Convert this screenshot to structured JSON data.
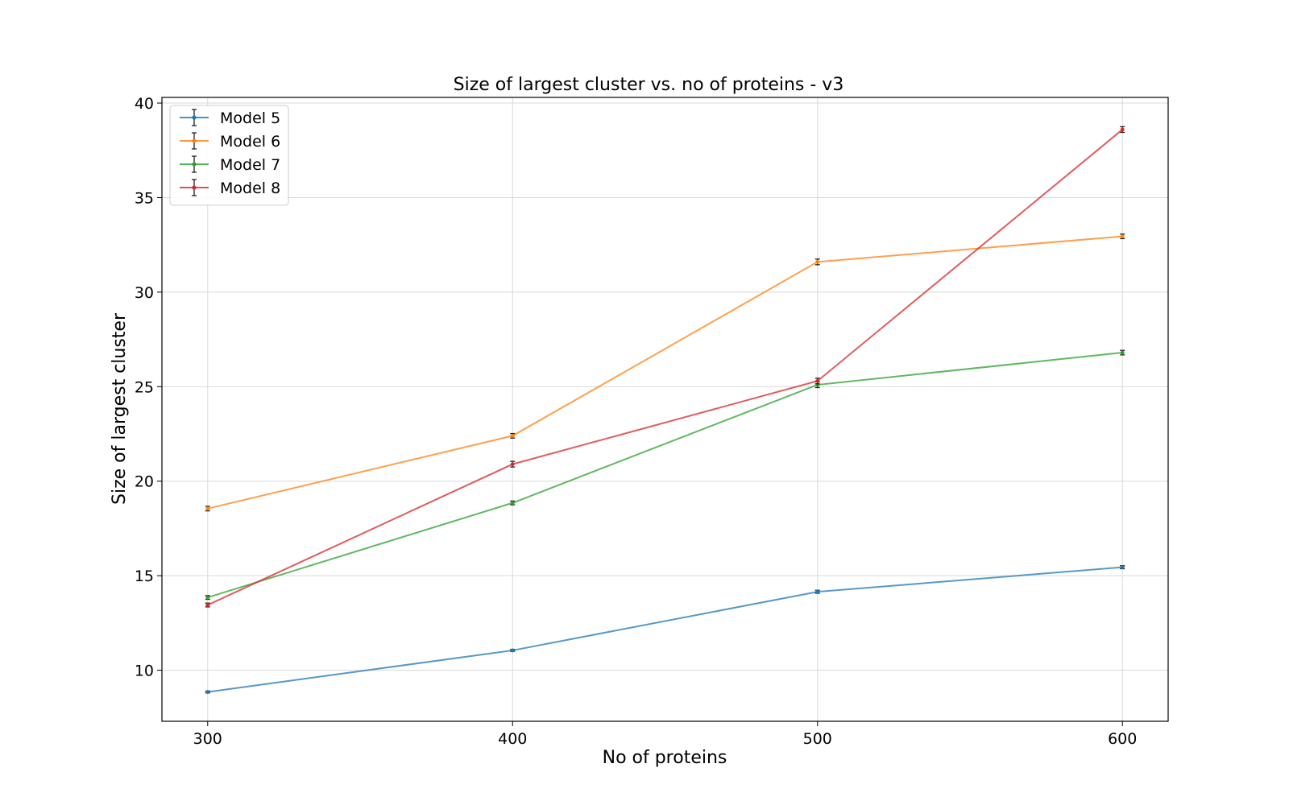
{
  "chart_data": {
    "type": "line",
    "title": "Size of largest cluster vs. no of proteins - v3",
    "xlabel": "No of proteins",
    "ylabel": "Size of largest cluster",
    "x": [
      300,
      400,
      500,
      600
    ],
    "xticks": [
      300,
      400,
      500,
      600
    ],
    "yticks": [
      10,
      15,
      20,
      25,
      30,
      35,
      40
    ],
    "xlim": [
      285,
      615
    ],
    "ylim": [
      7.3,
      40.3
    ],
    "grid": true,
    "legend": "top-left",
    "error_bars": true,
    "series": [
      {
        "name": "Model 5",
        "color": "#1f77b4",
        "values": [
          8.85,
          11.05,
          14.15,
          15.45
        ],
        "errors": [
          0.05,
          0.05,
          0.08,
          0.08
        ]
      },
      {
        "name": "Model 6",
        "color": "#ff7f0e",
        "values": [
          18.55,
          22.4,
          31.6,
          32.95
        ],
        "errors": [
          0.12,
          0.12,
          0.15,
          0.12
        ]
      },
      {
        "name": "Model 7",
        "color": "#2ca02c",
        "values": [
          13.85,
          18.85,
          25.1,
          26.8
        ],
        "errors": [
          0.1,
          0.1,
          0.15,
          0.12
        ]
      },
      {
        "name": "Model 8",
        "color": "#d62728",
        "values": [
          13.45,
          20.9,
          25.3,
          38.6
        ],
        "errors": [
          0.1,
          0.15,
          0.15,
          0.15
        ]
      }
    ]
  }
}
